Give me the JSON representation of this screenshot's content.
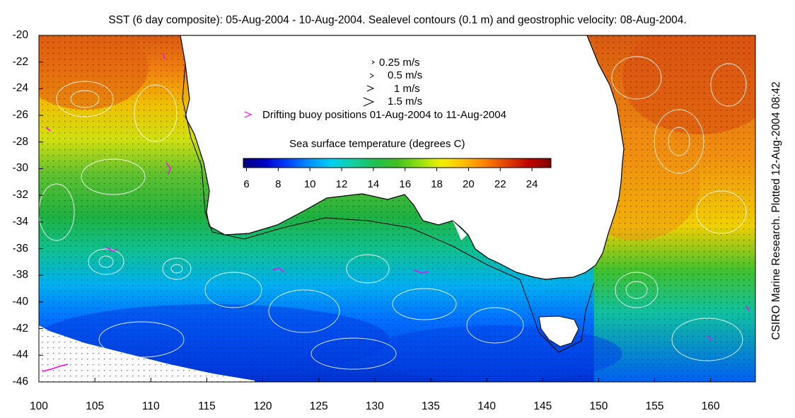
{
  "title": "SST (6 day composite): 05-Aug-2004 - 10-Aug-2004. Sealevel contours (0.1 m) and geostrophic velocity: 08-Aug-2004.",
  "side_label": "CSIRO Marine Research. Plotted 12-Aug-2004 08:42",
  "axes": {
    "lon_range": [
      100,
      164
    ],
    "lat_range": [
      -46,
      -20
    ],
    "x_ticks": [
      "100",
      "105",
      "110",
      "115",
      "120",
      "125",
      "130",
      "135",
      "140",
      "145",
      "150",
      "155",
      "160"
    ],
    "y_ticks": [
      "-20",
      "-22",
      "-24",
      "-26",
      "-28",
      "-30",
      "-32",
      "-34",
      "-36",
      "-38",
      "-40",
      "-42",
      "-44",
      "-46"
    ]
  },
  "velocity_legend": [
    {
      "label": "0.25 m/s",
      "icon": "arrow-small-icon"
    },
    {
      "label": "0.5 m/s",
      "icon": "arrow-medium-icon"
    },
    {
      "label": "1 m/s",
      "icon": "arrow-large-icon"
    },
    {
      "label": "1.5 m/s",
      "icon": "arrow-xlarge-icon"
    }
  ],
  "buoy_legend": {
    "label": "Drifting buoy positions 01-Aug-2004 to 11-Aug-2004",
    "color": "#ff00ff"
  },
  "colorbar": {
    "title": "Sea surface temperature (degrees C)",
    "ticks": [
      "6",
      "8",
      "10",
      "12",
      "14",
      "16",
      "18",
      "20",
      "22",
      "24"
    ],
    "range": [
      5.8,
      25.2
    ],
    "colors": [
      "#00007f",
      "#0000c8",
      "#0040ff",
      "#0090ff",
      "#00d0f0",
      "#10d0a0",
      "#20c050",
      "#40c020",
      "#90e010",
      "#f0f000",
      "#ffc000",
      "#ff8000",
      "#e04000",
      "#c00000",
      "#800000"
    ]
  }
}
